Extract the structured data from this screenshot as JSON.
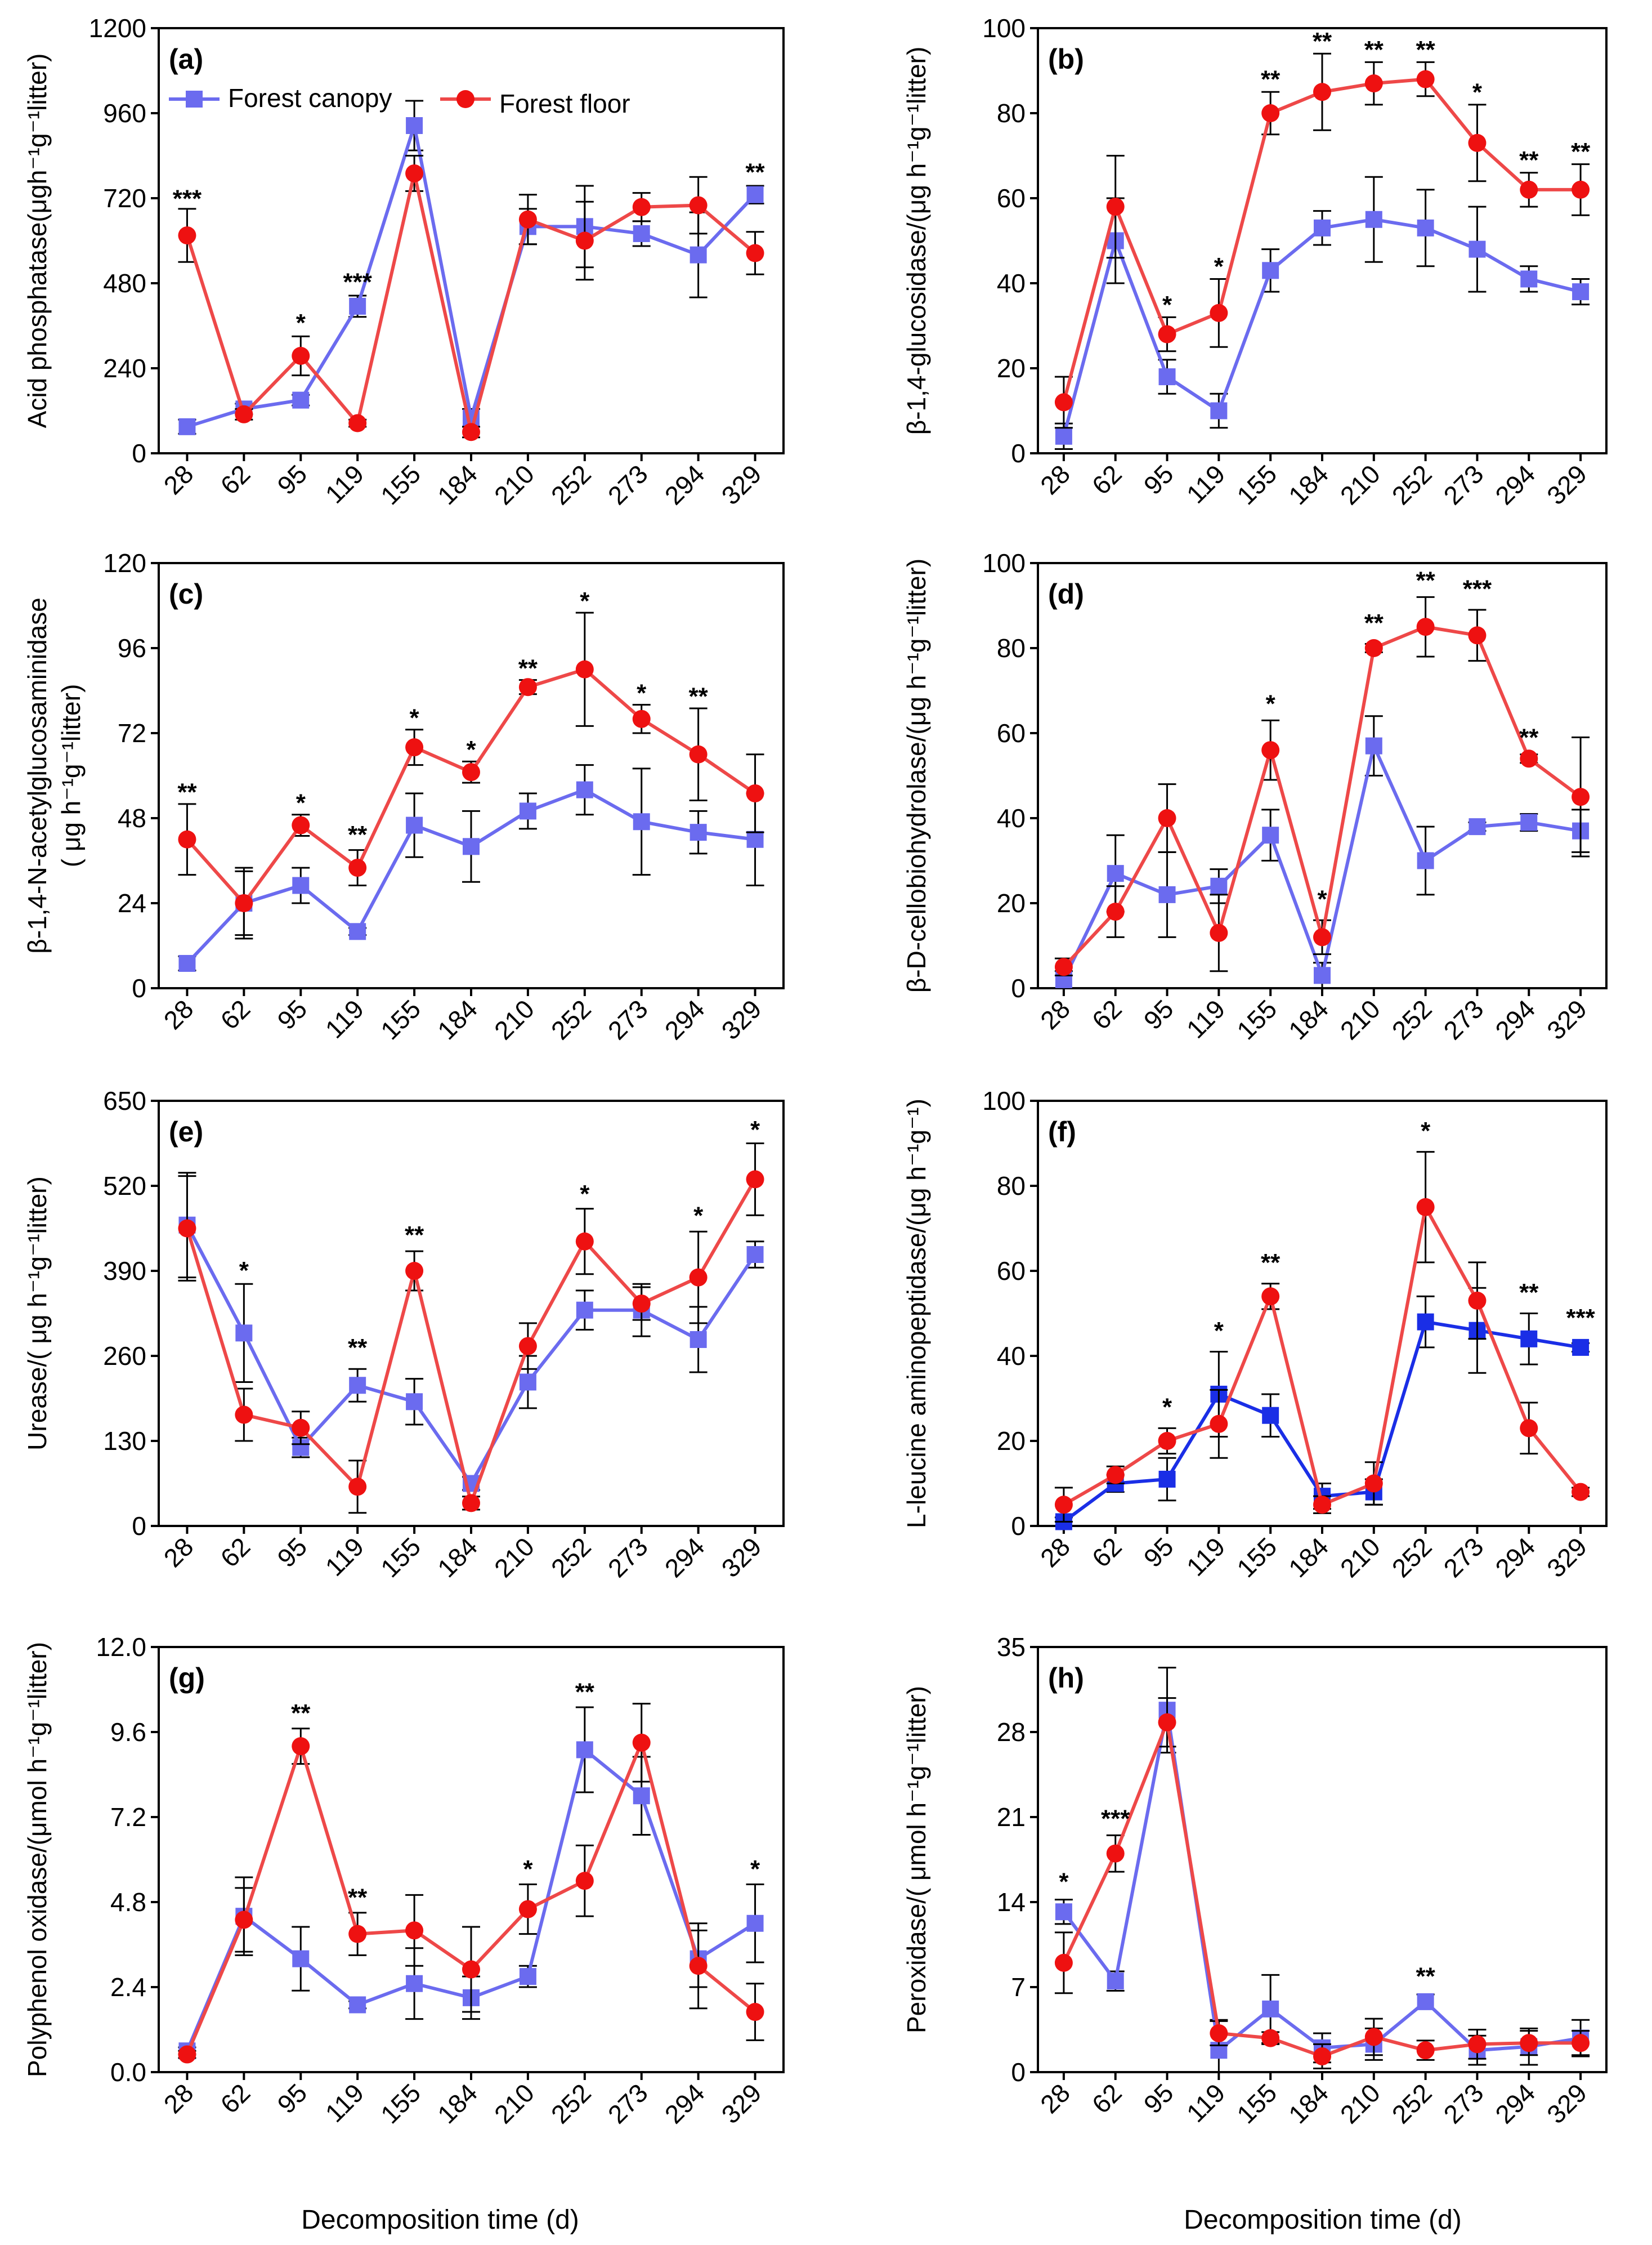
{
  "colors": {
    "canopy": "#6b6bef",
    "floor": "#ee4848",
    "floor_marker": "#ee1111",
    "canopy_dark": "#1a2ee6"
  },
  "shared": {
    "x_title": "Decomposition time (d)",
    "categories": [
      "28",
      "62",
      "95",
      "119",
      "155",
      "184",
      "210",
      "252",
      "273",
      "294",
      "329"
    ],
    "legend": [
      "Forest canopy",
      "Forest floor"
    ]
  },
  "chart_data": [
    {
      "id": "a",
      "type": "line",
      "panel_label": "(a)",
      "ylabel": "Acid phosphatase(μgh⁻¹g⁻¹litter)",
      "ylim": [
        0,
        1200
      ],
      "yticks": [
        0,
        240,
        480,
        720,
        960,
        1200
      ],
      "ytick_labels": [
        "0",
        "240",
        "480",
        "720",
        "960",
        "1200"
      ],
      "series": [
        {
          "name": "Forest canopy",
          "values": [
            75,
            125,
            150,
            415,
            925,
            100,
            640,
            640,
            620,
            560,
            730
          ],
          "err": [
            20,
            15,
            15,
            30,
            70,
            25,
            50,
            115,
            35,
            120,
            25
          ]
        },
        {
          "name": "Forest floor",
          "values": [
            615,
            110,
            275,
            85,
            790,
            60,
            660,
            600,
            695,
            700,
            565
          ],
          "err": [
            75,
            15,
            55,
            10,
            50,
            15,
            70,
            110,
            40,
            80,
            60
          ]
        }
      ],
      "sig": [
        "***",
        "",
        "*",
        "***",
        "",
        "",
        "",
        "",
        "",
        "",
        "**"
      ],
      "sig_at": [
        [
          0,
          695
        ],
        [
          2,
          345
        ],
        [
          3,
          460
        ],
        [
          10,
          770
        ]
      ]
    },
    {
      "id": "b",
      "type": "line",
      "panel_label": "(b)",
      "ylabel": "β-1,4-glucosidase/(μg h⁻¹g⁻¹litter)",
      "ylim": [
        0,
        100
      ],
      "yticks": [
        0,
        20,
        40,
        60,
        80,
        100
      ],
      "ytick_labels": [
        "0",
        "20",
        "40",
        "60",
        "80",
        "100"
      ],
      "series": [
        {
          "name": "Forest canopy",
          "values": [
            4,
            50,
            18,
            10,
            43,
            53,
            55,
            53,
            48,
            41,
            38
          ],
          "err": [
            3,
            10,
            4,
            4,
            5,
            4,
            10,
            9,
            10,
            3,
            3
          ]
        },
        {
          "name": "Forest floor",
          "values": [
            12,
            58,
            28,
            33,
            80,
            85,
            87,
            88,
            73,
            62,
            62
          ],
          "err": [
            6,
            12,
            4,
            8,
            5,
            9,
            5,
            4,
            9,
            4,
            6
          ]
        }
      ],
      "sig": [
        "",
        "",
        "*",
        "*",
        "**",
        "**",
        "**",
        "**",
        "*",
        "**",
        "**"
      ],
      "sig_at": [
        [
          2,
          33
        ],
        [
          3,
          42
        ],
        [
          4,
          86
        ],
        [
          5,
          95
        ],
        [
          6,
          93
        ],
        [
          7,
          93
        ],
        [
          8,
          83
        ],
        [
          9,
          67
        ],
        [
          10,
          69
        ]
      ]
    },
    {
      "id": "c",
      "type": "line",
      "panel_label": "(c)",
      "ylabel": "β-1,4-N-acetylglucosaminidase",
      "ylabel2": "( μg h⁻¹g⁻¹litter)",
      "ylim": [
        0,
        120
      ],
      "yticks": [
        0,
        24,
        48,
        72,
        96,
        120
      ],
      "ytick_labels": [
        "0",
        "24",
        "48",
        "72",
        "96",
        "120"
      ],
      "series": [
        {
          "name": "Forest canopy",
          "values": [
            7,
            24,
            29,
            16,
            46,
            40,
            50,
            56,
            47,
            44,
            42
          ],
          "err": [
            2,
            10,
            5,
            1,
            9,
            10,
            5,
            7,
            15,
            6,
            13
          ]
        },
        {
          "name": "Forest floor",
          "values": [
            42,
            24,
            46,
            34,
            68,
            61,
            85,
            90,
            76,
            66,
            55
          ],
          "err": [
            10,
            9,
            3,
            5,
            5,
            3,
            2,
            16,
            4,
            13,
            11
          ]
        }
      ],
      "sig": [
        "**",
        "",
        "*",
        "**",
        "*",
        "*",
        "**",
        "*",
        "*",
        "**",
        ""
      ],
      "sig_at": [
        [
          0,
          53
        ],
        [
          2,
          50
        ],
        [
          3,
          41
        ],
        [
          4,
          74
        ],
        [
          5,
          65
        ],
        [
          6,
          88
        ],
        [
          7,
          107
        ],
        [
          8,
          81
        ],
        [
          9,
          80
        ]
      ]
    },
    {
      "id": "d",
      "type": "line",
      "panel_label": "(d)",
      "ylabel": "β-D-cellobiohydrolase/(μg h⁻¹g⁻¹litter)",
      "ylim": [
        0,
        100
      ],
      "yticks": [
        0,
        20,
        40,
        60,
        80,
        100
      ],
      "ytick_labels": [
        "0",
        "20",
        "40",
        "60",
        "80",
        "100"
      ],
      "series": [
        {
          "name": "Forest canopy",
          "values": [
            2,
            27,
            22,
            24,
            36,
            3,
            57,
            30,
            38,
            39,
            37
          ],
          "err": [
            2,
            9,
            10,
            4,
            6,
            3,
            7,
            8,
            1,
            2,
            5
          ]
        },
        {
          "name": "Forest floor",
          "values": [
            5,
            18,
            40,
            13,
            56,
            12,
            80,
            85,
            83,
            54,
            45
          ],
          "err": [
            2,
            6,
            8,
            9,
            7,
            4,
            1,
            7,
            6,
            1,
            14
          ]
        }
      ],
      "sig": [
        "",
        "",
        "",
        "",
        "*",
        "*",
        "**",
        "**",
        "***",
        "**",
        ""
      ],
      "sig_at": [
        [
          4,
          65
        ],
        [
          5,
          19
        ],
        [
          6,
          84
        ],
        [
          7,
          94
        ],
        [
          8,
          92
        ],
        [
          9,
          57
        ]
      ]
    },
    {
      "id": "e",
      "type": "line",
      "panel_label": "(e)",
      "ylabel": "Urease/( μg h⁻¹g⁻¹litter)",
      "ylim": [
        0,
        650
      ],
      "yticks": [
        0,
        130,
        260,
        390,
        520,
        650
      ],
      "ytick_labels": [
        "0",
        "130",
        "260",
        "390",
        "520",
        "650"
      ],
      "series": [
        {
          "name": "Forest canopy",
          "values": [
            460,
            295,
            120,
            215,
            190,
            65,
            220,
            330,
            330,
            285,
            415
          ],
          "err": [
            80,
            75,
            15,
            25,
            35,
            10,
            40,
            30,
            40,
            50,
            20
          ]
        },
        {
          "name": "Forest floor",
          "values": [
            455,
            170,
            150,
            60,
            390,
            35,
            275,
            435,
            340,
            380,
            530
          ],
          "err": [
            80,
            40,
            25,
            40,
            30,
            10,
            35,
            50,
            25,
            70,
            55
          ]
        }
      ],
      "sig": [
        "",
        "*",
        "",
        "**",
        "**",
        "",
        "",
        "*",
        "",
        "*",
        "*"
      ],
      "sig_at": [
        [
          1,
          378
        ],
        [
          3,
          260
        ],
        [
          4,
          432
        ],
        [
          7,
          495
        ],
        [
          9,
          462
        ],
        [
          10,
          593
        ]
      ]
    },
    {
      "id": "f",
      "type": "line",
      "panel_label": "(f)",
      "ylabel": "L-leucine aminopeptidase/(μg h⁻¹g⁻¹)",
      "ylim": [
        0,
        100
      ],
      "yticks": [
        0,
        20,
        40,
        60,
        80,
        100
      ],
      "ytick_labels": [
        "0",
        "20",
        "40",
        "60",
        "80",
        "100"
      ],
      "series": [
        {
          "name": "Forest canopy",
          "values": [
            1,
            10,
            11,
            31,
            26,
            7,
            8,
            48,
            46,
            44,
            42
          ],
          "err": [
            1,
            2,
            5,
            10,
            5,
            3,
            3,
            6,
            10,
            6,
            1
          ]
        },
        {
          "name": "Forest floor",
          "values": [
            5,
            12,
            20,
            24,
            54,
            5,
            10,
            75,
            53,
            23,
            8
          ],
          "err": [
            4,
            2,
            3,
            8,
            3,
            2,
            5,
            13,
            9,
            6,
            1
          ]
        }
      ],
      "sig": [
        "",
        "",
        "*",
        "*",
        "**",
        "",
        "",
        "*",
        "",
        "**",
        "***"
      ],
      "sig_at": [
        [
          2,
          26
        ],
        [
          3,
          44
        ],
        [
          4,
          60
        ],
        [
          7,
          91
        ],
        [
          9,
          53
        ],
        [
          10,
          47
        ]
      ]
    },
    {
      "id": "g",
      "type": "line",
      "panel_label": "(g)",
      "ylabel": "Polyphenol oxidase/(μmol h⁻¹g⁻¹litter)",
      "ylim": [
        0,
        12
      ],
      "yticks": [
        0,
        2.4,
        4.8,
        7.2,
        9.6,
        12
      ],
      "ytick_labels": [
        "0.0",
        "2.4",
        "4.8",
        "7.2",
        "9.6",
        "12.0"
      ],
      "series": [
        {
          "name": "Forest canopy",
          "values": [
            0.6,
            4.4,
            3.2,
            1.9,
            2.5,
            2.1,
            2.7,
            9.1,
            7.8,
            3.2,
            4.2
          ],
          "err": [
            0.1,
            1.1,
            0.9,
            0.1,
            1.0,
            0.6,
            0.3,
            1.2,
            1.1,
            0.8,
            1.1
          ]
        },
        {
          "name": "Forest floor",
          "values": [
            0.5,
            4.3,
            9.2,
            3.9,
            4.0,
            2.9,
            4.6,
            5.4,
            9.3,
            3.0,
            1.7
          ],
          "err": [
            0.1,
            0.9,
            0.5,
            0.6,
            1.0,
            1.2,
            0.7,
            1.0,
            1.1,
            1.2,
            0.8
          ]
        }
      ],
      "sig": [
        "",
        "",
        "**",
        "**",
        "",
        "",
        "*",
        "**",
        "",
        "",
        "*"
      ],
      "sig_at": [
        [
          2,
          9.9
        ],
        [
          3,
          4.7
        ],
        [
          6,
          5.5
        ],
        [
          7,
          10.5
        ],
        [
          10,
          5.5
        ]
      ]
    },
    {
      "id": "h",
      "type": "line",
      "panel_label": "(h)",
      "ylabel": "Peroxidase/( μmol h⁻¹g⁻¹litter)",
      "ylim": [
        0,
        35
      ],
      "yticks": [
        0,
        7,
        14,
        21,
        28,
        35
      ],
      "ytick_labels": [
        "0",
        "7",
        "14",
        "21",
        "28",
        "35"
      ],
      "series": [
        {
          "name": "Forest canopy",
          "values": [
            13.2,
            7.5,
            29.8,
            1.8,
            5.2,
            2.0,
            2.3,
            5.8,
            1.8,
            2.1,
            2.8
          ],
          "err": [
            1.0,
            0.8,
            3.5,
            2.5,
            2.8,
            1.2,
            1.3,
            0.6,
            1.2,
            1.5,
            1.5
          ]
        },
        {
          "name": "Forest floor",
          "values": [
            9.0,
            18.0,
            28.8,
            3.2,
            2.8,
            1.3,
            2.9,
            1.8,
            2.3,
            2.4,
            2.4
          ],
          "err": [
            2.5,
            1.5,
            2.0,
            1.0,
            0.5,
            1.0,
            1.5,
            0.8,
            1.2,
            1.0,
            1.0
          ]
        }
      ],
      "sig": [
        "*",
        "***",
        "",
        "",
        "",
        "",
        "",
        "**",
        "",
        "",
        ""
      ],
      "sig_at": [
        [
          0,
          15.0
        ],
        [
          1,
          20.2
        ],
        [
          7,
          7.2
        ]
      ]
    }
  ]
}
